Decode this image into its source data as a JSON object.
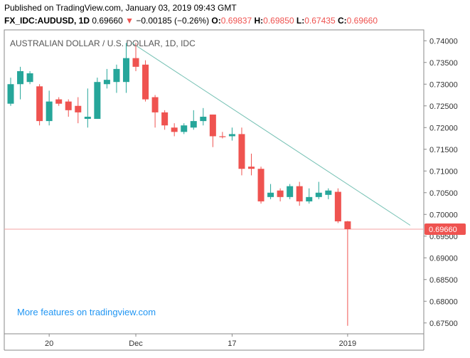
{
  "header": {
    "published": "Published on TradingView.com, January 03, 2019 09:43 GMT",
    "symbol": "FX_IDC:AUDUSD, 1D",
    "last": "0.69660",
    "arrow": "▼",
    "change": "−0.00185 (−0.26%)",
    "o_label": "O:",
    "o_value": "0.69837",
    "h_label": "H:",
    "h_value": "0.69850",
    "l_label": "L:",
    "l_value": "0.67435",
    "c_label": "C:",
    "c_value": "0.69660"
  },
  "colors": {
    "up": "#26a69a",
    "down": "#ef5350",
    "trendline": "#76c1b4",
    "price_line": "#f5a3a3",
    "axis": "#888888",
    "watermark": "#2196f3"
  },
  "chart_data": {
    "type": "candlestick",
    "title": "AUSTRALIAN DOLLAR / U.S. DOLLAR, 1D, IDC",
    "watermark": "More features on tradingview.com",
    "ylim": [
      0.6725,
      0.7425
    ],
    "y_ticks": [
      "0.74000",
      "0.73500",
      "0.73000",
      "0.72500",
      "0.72000",
      "0.71500",
      "0.71000",
      "0.70500",
      "0.70000",
      "0.69500",
      "0.69000",
      "0.68500",
      "0.68000",
      "0.67500"
    ],
    "x_ticks": [
      {
        "label": "20",
        "index": 4
      },
      {
        "label": "Dec",
        "index": 13
      },
      {
        "label": "17",
        "index": 23
      },
      {
        "label": "2019",
        "index": 35
      }
    ],
    "last_price_label": "0.69660",
    "last_price": 0.6966,
    "candles": [
      {
        "o": 0.7255,
        "h": 0.7315,
        "l": 0.725,
        "c": 0.73
      },
      {
        "o": 0.73,
        "h": 0.734,
        "l": 0.7265,
        "c": 0.733
      },
      {
        "o": 0.7305,
        "h": 0.733,
        "l": 0.73,
        "c": 0.7325
      },
      {
        "o": 0.7295,
        "h": 0.73,
        "l": 0.7205,
        "c": 0.7215
      },
      {
        "o": 0.7215,
        "h": 0.7285,
        "l": 0.7205,
        "c": 0.726
      },
      {
        "o": 0.7265,
        "h": 0.727,
        "l": 0.725,
        "c": 0.7255
      },
      {
        "o": 0.726,
        "h": 0.7265,
        "l": 0.7225,
        "c": 0.724
      },
      {
        "o": 0.725,
        "h": 0.727,
        "l": 0.721,
        "c": 0.7235
      },
      {
        "o": 0.722,
        "h": 0.729,
        "l": 0.72,
        "c": 0.7225
      },
      {
        "o": 0.722,
        "h": 0.7315,
        "l": 0.722,
        "c": 0.7305
      },
      {
        "o": 0.73,
        "h": 0.7335,
        "l": 0.729,
        "c": 0.731
      },
      {
        "o": 0.7305,
        "h": 0.7345,
        "l": 0.728,
        "c": 0.7335
      },
      {
        "o": 0.7305,
        "h": 0.7395,
        "l": 0.728,
        "c": 0.736
      },
      {
        "o": 0.736,
        "h": 0.7395,
        "l": 0.733,
        "c": 0.734
      },
      {
        "o": 0.7345,
        "h": 0.7355,
        "l": 0.726,
        "c": 0.7265
      },
      {
        "o": 0.727,
        "h": 0.7275,
        "l": 0.72,
        "c": 0.7235
      },
      {
        "o": 0.7235,
        "h": 0.724,
        "l": 0.7195,
        "c": 0.7205
      },
      {
        "o": 0.72,
        "h": 0.721,
        "l": 0.718,
        "c": 0.719
      },
      {
        "o": 0.719,
        "h": 0.721,
        "l": 0.7185,
        "c": 0.7205
      },
      {
        "o": 0.72,
        "h": 0.724,
        "l": 0.7195,
        "c": 0.7215
      },
      {
        "o": 0.7215,
        "h": 0.7245,
        "l": 0.7205,
        "c": 0.7225
      },
      {
        "o": 0.723,
        "h": 0.723,
        "l": 0.7155,
        "c": 0.718
      },
      {
        "o": 0.718,
        "h": 0.719,
        "l": 0.7175,
        "c": 0.7178
      },
      {
        "o": 0.718,
        "h": 0.72,
        "l": 0.717,
        "c": 0.7185
      },
      {
        "o": 0.7185,
        "h": 0.72,
        "l": 0.709,
        "c": 0.7105
      },
      {
        "o": 0.711,
        "h": 0.714,
        "l": 0.709,
        "c": 0.7105
      },
      {
        "o": 0.7105,
        "h": 0.711,
        "l": 0.7025,
        "c": 0.703
      },
      {
        "o": 0.704,
        "h": 0.707,
        "l": 0.7035,
        "c": 0.705
      },
      {
        "o": 0.7055,
        "h": 0.706,
        "l": 0.703,
        "c": 0.704
      },
      {
        "o": 0.704,
        "h": 0.707,
        "l": 0.7035,
        "c": 0.7065
      },
      {
        "o": 0.7065,
        "h": 0.7075,
        "l": 0.702,
        "c": 0.703
      },
      {
        "o": 0.703,
        "h": 0.706,
        "l": 0.7025,
        "c": 0.704
      },
      {
        "o": 0.704,
        "h": 0.7075,
        "l": 0.7035,
        "c": 0.705
      },
      {
        "o": 0.7045,
        "h": 0.706,
        "l": 0.7035,
        "c": 0.7055
      },
      {
        "o": 0.7052,
        "h": 0.706,
        "l": 0.698,
        "c": 0.6984
      },
      {
        "o": 0.6984,
        "h": 0.6985,
        "l": 0.67435,
        "c": 0.6966
      }
    ],
    "trendline": [
      {
        "index": 12.6,
        "price": 0.7395
      },
      {
        "index": 41.5,
        "price": 0.6975
      }
    ]
  }
}
